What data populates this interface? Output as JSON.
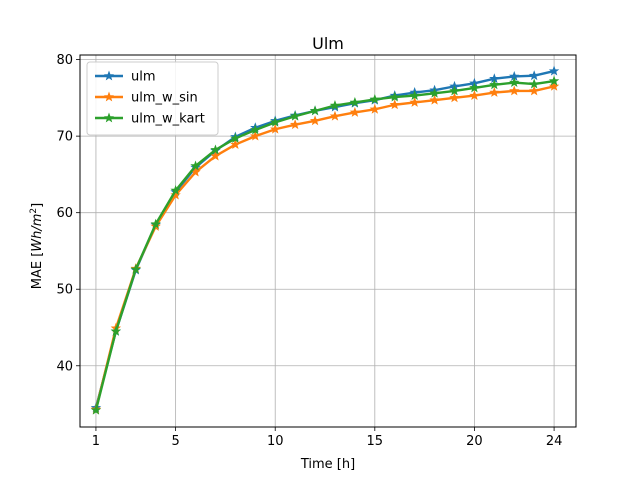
{
  "chart_data": {
    "type": "line",
    "title": "Ulm",
    "xlabel": "Time [h]",
    "ylabel_prefix": "MAE [",
    "ylabel_math": "Wh/m",
    "ylabel_sup": "2",
    "ylabel_suffix": "]",
    "xlim": [
      0.2,
      25.1
    ],
    "ylim": [
      32,
      80.6
    ],
    "xticks": [
      1,
      5,
      10,
      15,
      20,
      24
    ],
    "yticks": [
      40,
      50,
      60,
      70,
      80
    ],
    "grid": true,
    "legend_position": "top-left",
    "x": [
      1,
      2,
      3,
      4,
      5,
      6,
      7,
      8,
      9,
      10,
      11,
      12,
      13,
      14,
      15,
      16,
      17,
      18,
      19,
      20,
      21,
      22,
      23,
      24
    ],
    "series": [
      {
        "name": "ulm",
        "color": "#1f77b4",
        "values": [
          34.5,
          44.5,
          52.5,
          58.4,
          62.7,
          65.9,
          68.1,
          69.9,
          71.1,
          72.0,
          72.7,
          73.3,
          73.8,
          74.3,
          74.7,
          75.3,
          75.7,
          76.0,
          76.5,
          76.9,
          77.5,
          77.8,
          77.9,
          78.5
        ]
      },
      {
        "name": "ulm_w_sin",
        "color": "#ff7f0e",
        "values": [
          34.3,
          44.9,
          52.7,
          58.2,
          62.3,
          65.3,
          67.4,
          68.9,
          70.0,
          70.9,
          71.5,
          72.0,
          72.6,
          73.1,
          73.5,
          74.1,
          74.4,
          74.7,
          75.0,
          75.3,
          75.7,
          75.9,
          75.9,
          76.5
        ]
      },
      {
        "name": "ulm_w_kart",
        "color": "#2ca02c",
        "values": [
          34.2,
          44.5,
          52.6,
          58.5,
          62.9,
          66.1,
          68.2,
          69.7,
          70.8,
          71.8,
          72.6,
          73.3,
          74.0,
          74.4,
          74.8,
          75.1,
          75.3,
          75.6,
          75.9,
          76.3,
          76.7,
          77.0,
          76.8,
          77.2
        ]
      }
    ]
  }
}
